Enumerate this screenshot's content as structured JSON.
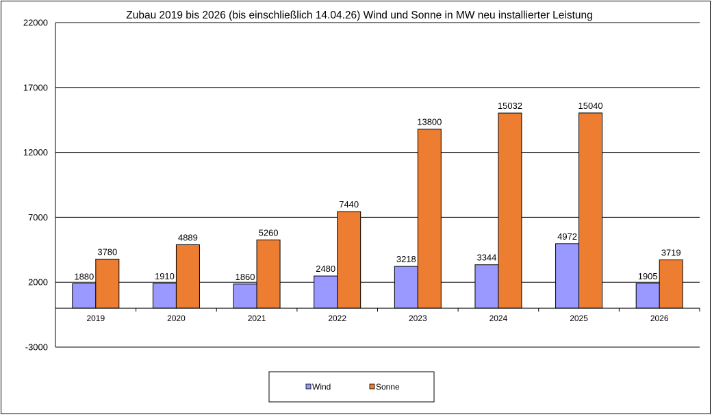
{
  "chart_data": {
    "type": "bar",
    "title": "Zubau 2019 bis 2026 (bis einschließlich 14.04.26) Wind und Sonne in MW neu installierter Leistung",
    "categories": [
      "2019",
      "2020",
      "2021",
      "2022",
      "2023",
      "2024",
      "2025",
      "2026"
    ],
    "series": [
      {
        "name": "Wind",
        "values": [
          1880,
          1910,
          1860,
          2480,
          3218,
          3344,
          4972,
          1905
        ],
        "color": "#9999ff"
      },
      {
        "name": "Sonne",
        "values": [
          3780,
          4889,
          5260,
          7440,
          13800,
          15032,
          15040,
          3719
        ],
        "color": "#ed7d31"
      }
    ],
    "yticks": [
      22000,
      17000,
      12000,
      7000,
      2000,
      -3000
    ],
    "ylim": [
      -3000,
      22000
    ],
    "grid": true,
    "legend_position": "bottom-center",
    "colors": {
      "border": "#000000",
      "background": "#ffffff"
    }
  }
}
